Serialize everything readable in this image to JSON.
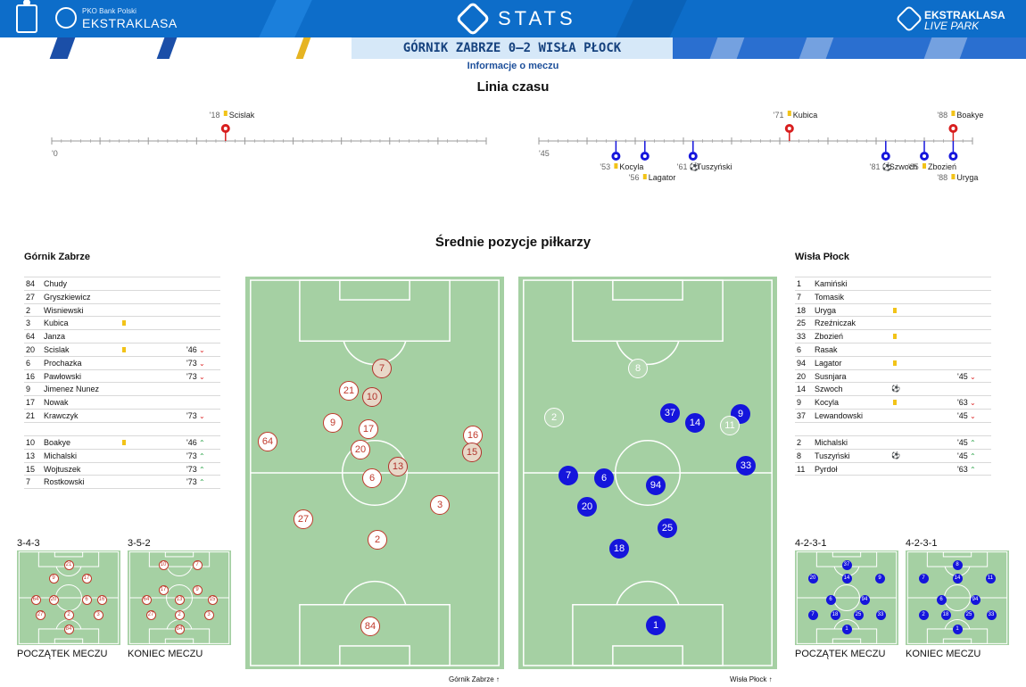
{
  "header": {
    "pko_small": "PKO Bank Polski",
    "league_name": "EKSTRAKLASA",
    "stats_title": "STATS",
    "livepark_line1": "EKSTRAKLASA",
    "livepark_line2": "LIVE PARK"
  },
  "match": {
    "title": "GÓRNIK ZABRZE 0–2 WISŁA PŁOCK",
    "info_link": "Informacje o meczu"
  },
  "timeline": {
    "title": "Linia czasu",
    "first_half_start": "'0",
    "second_half_start": "'45",
    "first_half": [
      {
        "minute": "'18",
        "player": "Scislak",
        "type": "yellow",
        "team": "home"
      }
    ],
    "second_half": [
      {
        "minute": "'71",
        "player": "Kubica",
        "type": "yellow",
        "team": "home"
      },
      {
        "minute": "'88",
        "player": "Boakye",
        "type": "yellow",
        "team": "home"
      },
      {
        "minute": "'53",
        "player": "Kocyla",
        "type": "yellow",
        "team": "away"
      },
      {
        "minute": "'56",
        "player": "Lagator",
        "type": "yellow",
        "team": "away"
      },
      {
        "minute": "'61",
        "player": "Tuszyński",
        "type": "goal",
        "team": "away"
      },
      {
        "minute": "'81",
        "player": "Szwoch",
        "type": "goal",
        "team": "away"
      },
      {
        "minute": "'85",
        "player": "Zbozień",
        "type": "yellow",
        "team": "away"
      },
      {
        "minute": "'88",
        "player": "Uryga",
        "type": "yellow",
        "team": "away"
      }
    ]
  },
  "positions_title": "Średnie pozycje piłkarzy",
  "home": {
    "name": "Górnik Zabrze",
    "starters": [
      {
        "num": "84",
        "name": "Chudy"
      },
      {
        "num": "27",
        "name": "Gryszkiewicz"
      },
      {
        "num": "2",
        "name": "Wisniewski"
      },
      {
        "num": "3",
        "name": "Kubica",
        "card": "yellow"
      },
      {
        "num": "64",
        "name": "Janza"
      },
      {
        "num": "20",
        "name": "Scislak",
        "card": "yellow",
        "min": "'46",
        "arrow": "out"
      },
      {
        "num": "6",
        "name": "Prochazka",
        "min": "'73",
        "arrow": "out"
      },
      {
        "num": "16",
        "name": "Pawłowski",
        "min": "'73",
        "arrow": "out"
      },
      {
        "num": "9",
        "name": "Jimenez Nunez"
      },
      {
        "num": "17",
        "name": "Nowak"
      },
      {
        "num": "21",
        "name": "Krawczyk",
        "min": "'73",
        "arrow": "out"
      }
    ],
    "subs": [
      {
        "num": "10",
        "name": "Boakye",
        "card": "yellow",
        "min": "'46",
        "arrow": "in"
      },
      {
        "num": "13",
        "name": "Michalski",
        "min": "'73",
        "arrow": "in"
      },
      {
        "num": "15",
        "name": "Wojtuszek",
        "min": "'73",
        "arrow": "in"
      },
      {
        "num": "7",
        "name": "Rostkowski",
        "min": "'73",
        "arrow": "in"
      }
    ],
    "formation_start": "3-4-3",
    "formation_end": "3-5-2",
    "caption_start": "POCZĄTEK MECZU",
    "caption_end": "KONIEC MECZU",
    "axis_label": "Górnik Zabrze"
  },
  "away": {
    "name": "Wisła Płock",
    "starters": [
      {
        "num": "1",
        "name": "Kamiński"
      },
      {
        "num": "7",
        "name": "Tomasik"
      },
      {
        "num": "18",
        "name": "Uryga",
        "card": "yellow"
      },
      {
        "num": "25",
        "name": "Rzeźniczak"
      },
      {
        "num": "33",
        "name": "Zbozień",
        "card": "yellow"
      },
      {
        "num": "6",
        "name": "Rasak"
      },
      {
        "num": "94",
        "name": "Lagator",
        "card": "yellow"
      },
      {
        "num": "20",
        "name": "Susnjara",
        "min": "'45",
        "arrow": "out"
      },
      {
        "num": "14",
        "name": "Szwoch",
        "goal": "⚽"
      },
      {
        "num": "9",
        "name": "Kocyla",
        "card": "yellow",
        "min": "'63",
        "arrow": "out"
      },
      {
        "num": "37",
        "name": "Lewandowski",
        "min": "'45",
        "arrow": "out"
      }
    ],
    "subs": [
      {
        "num": "2",
        "name": "Michalski",
        "min": "'45",
        "arrow": "in"
      },
      {
        "num": "8",
        "name": "Tuszyński",
        "goal": "⚽",
        "min": "'45",
        "arrow": "in"
      },
      {
        "num": "11",
        "name": "Pyrdoł",
        "min": "'63",
        "arrow": "in"
      }
    ],
    "formation_start": "4-2-3-1",
    "formation_end": "4-2-3-1",
    "caption_start": "POCZĄTEK MECZU",
    "caption_end": "KONIEC MECZU",
    "axis_label": "Wisła Płock"
  },
  "colors": {
    "home": "#c0392b",
    "away": "#1515dc",
    "pitch": "#a5d0a3",
    "yellow_card": "#f2c318",
    "header": "#0d6dc9"
  }
}
